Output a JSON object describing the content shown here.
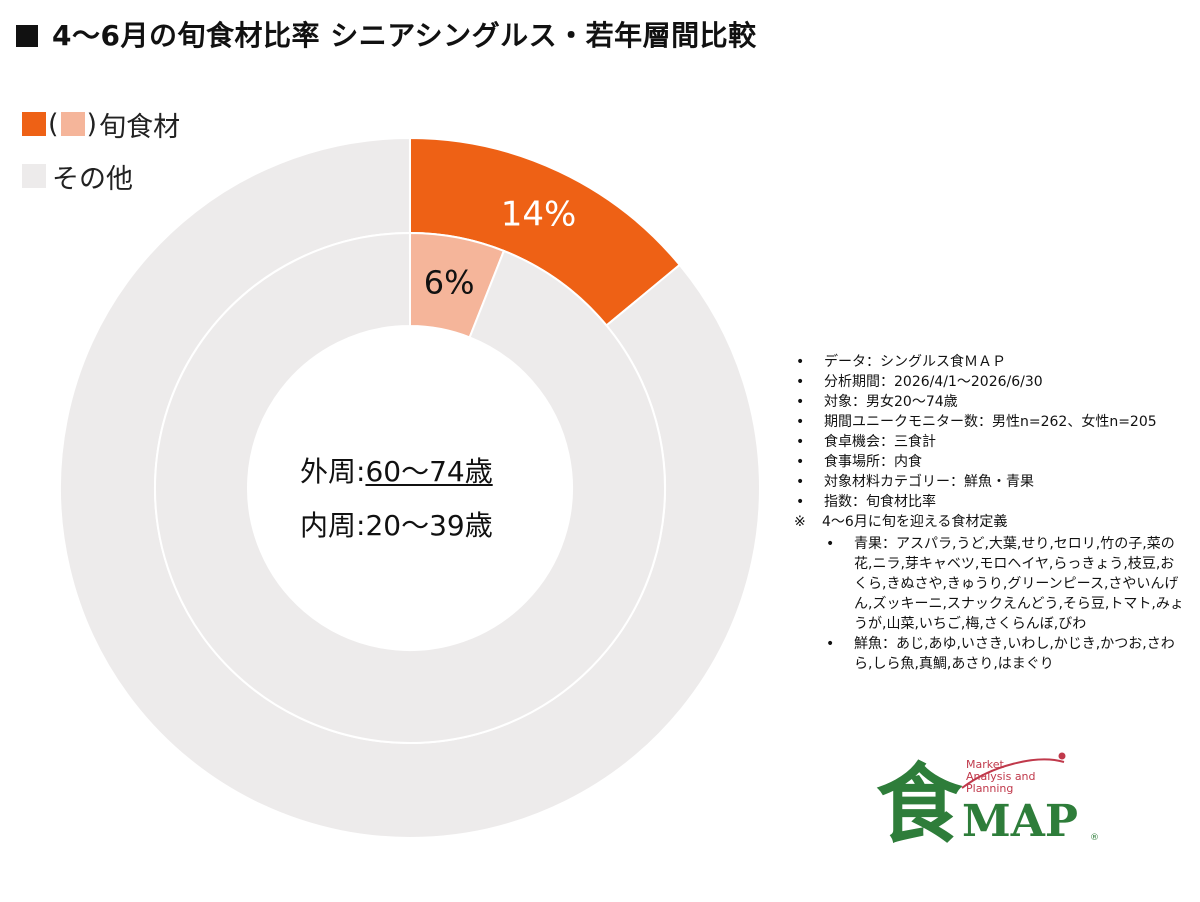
{
  "title": "4〜6月の旬食材比率 シニアシングルス・若年層間比較",
  "legend": {
    "paren_open": "(",
    "paren_close": ")",
    "seasonal_label": "旬食材",
    "other_label": "その他"
  },
  "colors": {
    "outer_seasonal": "#EE6115",
    "inner_seasonal": "#F5B59A",
    "other": "#EDEBEB",
    "ring_stroke": "#ffffff",
    "logo_green": "#2E7D3A",
    "logo_red": "#C0394B"
  },
  "chart_data": {
    "type": "pie",
    "style": "nested-donut",
    "series": [
      {
        "name": "外周:60〜74歳",
        "ring": "outer",
        "categories": [
          "旬食材",
          "その他"
        ],
        "values": [
          14,
          86
        ],
        "labels": [
          "14%",
          ""
        ]
      },
      {
        "name": "内周:20〜39歳",
        "ring": "inner",
        "categories": [
          "旬食材",
          "その他"
        ],
        "values": [
          6,
          94
        ],
        "labels": [
          "6%",
          ""
        ]
      }
    ]
  },
  "center": {
    "outer_prefix": "外周:",
    "outer_value": "60〜74歳",
    "inner_prefix": "内周:",
    "inner_value": "20〜39歳"
  },
  "notes": {
    "items": [
      "データ：シングルス食ＭＡＰ",
      "分析期間：2026/4/1〜2026/6/30",
      "対象：男女20〜74歳",
      "期間ユニークモニター数：男性n=262、女性n=205",
      "食卓機会：三食計",
      "食事場所：内食",
      "対象材料カテゴリー：鮮魚・青果",
      "指数：旬食材比率"
    ],
    "ref_mark": "※",
    "ref_text": "4〜6月に旬を迎える食材定義",
    "sub_items": [
      "青果：アスパラ,うど,大葉,せり,セロリ,竹の子,菜の花,ニラ,芽キャベツ,モロヘイヤ,らっきょう,枝豆,おくら,きぬさや,きゅうり,グリーンピース,さやいんげん,ズッキーニ,スナックえんどう,そら豆,トマト,みょうが,山菜,いちご,梅,さくらんぼ,びわ",
      "鮮魚：あじ,あゆ,いさき,いわし,かじき,かつお,さわら,しら魚,真鯛,あさり,はまぐり"
    ]
  },
  "logo": {
    "kanji": "食",
    "text": "MAP",
    "tagline": [
      "Market",
      "Analysis and",
      "Planning"
    ],
    "registered": "®"
  }
}
